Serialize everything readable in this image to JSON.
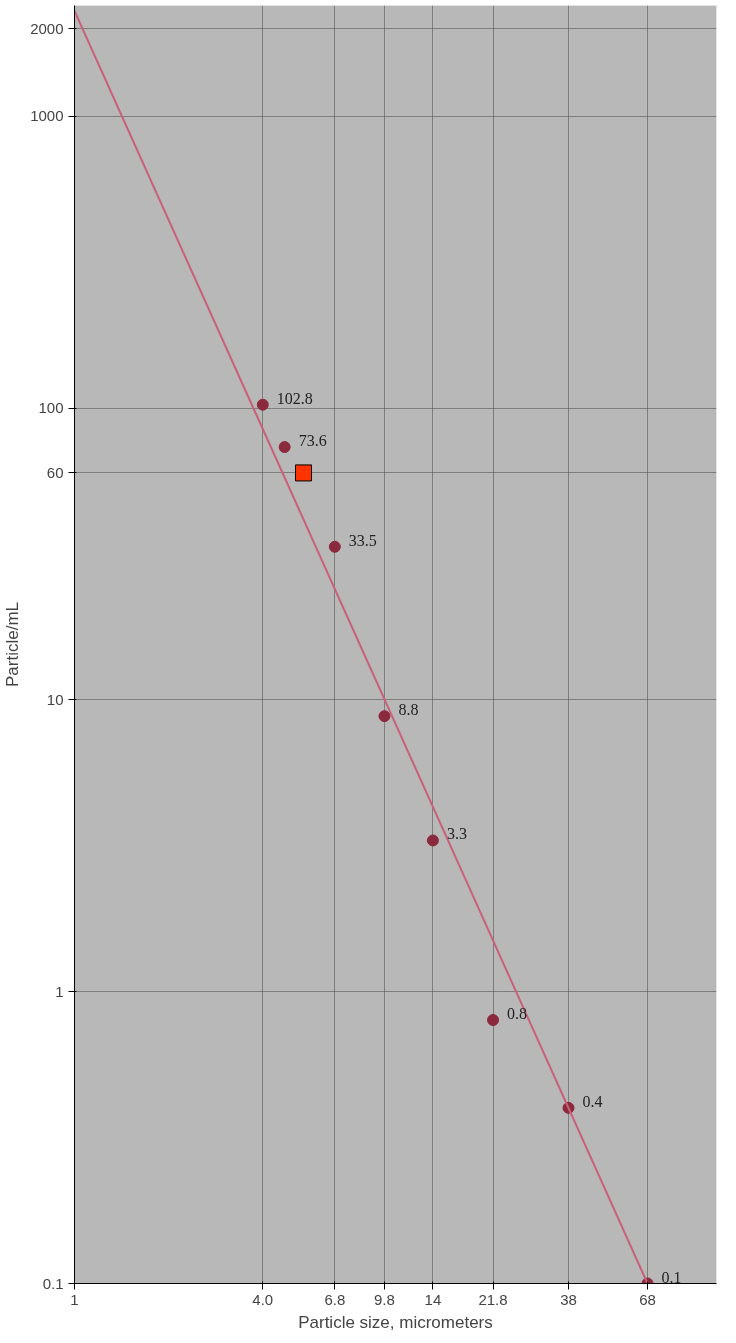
{
  "chart_data": {
    "type": "scatter",
    "xlabel": "Particle size, micrometers",
    "ylabel": "Particle/mL",
    "log": "xy",
    "xlim": [
      1,
      113
    ],
    "ylim": [
      0.1,
      2400
    ],
    "xticks": [
      1,
      {
        "value": 4.0,
        "label": "4.0"
      },
      6.8,
      9.8,
      14,
      21.8,
      38,
      68
    ],
    "yticks": [
      0.1,
      1,
      10,
      60,
      100,
      1000,
      2000
    ],
    "grid": true,
    "series": [
      {
        "marker": "circle",
        "color": "#8b2a3c",
        "x": [
          4.0,
          4.7,
          6.8,
          9.8,
          14,
          21.8,
          38,
          68
        ],
        "values": [
          102.8,
          73.6,
          33.5,
          8.8,
          3.3,
          0.8,
          0.4,
          0.1
        ],
        "value_labels": [
          "102.8",
          "73.6",
          "33.5",
          "8.8",
          "3.3",
          "0.8",
          "0.4",
          "0.1"
        ]
      },
      {
        "marker": "square",
        "color": "#ff3300",
        "x": [
          5.4
        ],
        "values": [
          60
        ]
      },
      {
        "type": "line",
        "color": "#c8607a",
        "line_style": "solid",
        "x": [
          1,
          68
        ],
        "values": [
          2300,
          0.1
        ]
      }
    ]
  }
}
